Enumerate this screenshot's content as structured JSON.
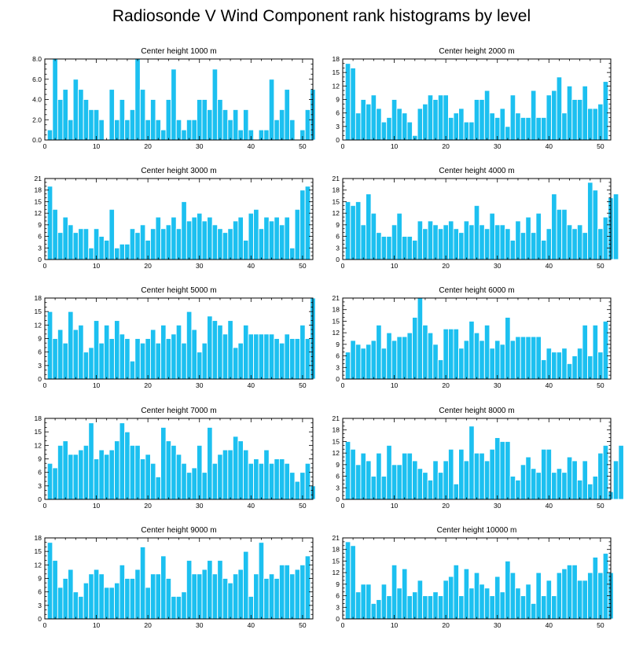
{
  "figure": {
    "title": "Radiosonde V Wind Component rank histograms by level"
  },
  "colors": {
    "bar": "#1cc0f0",
    "bar_edge": "#ffffff",
    "axis": "#000000"
  },
  "chart_data": [
    {
      "type": "bar",
      "title": "Center height 1000 m",
      "xlim": [
        0,
        52
      ],
      "ylim": [
        0,
        8
      ],
      "xticks": [
        0,
        10,
        20,
        30,
        40,
        50
      ],
      "yticks": [
        "0.0",
        "2.0",
        "4.0",
        "6.0",
        "8.0"
      ],
      "values": [
        1,
        8,
        4,
        5,
        2,
        6,
        5,
        4,
        3,
        3,
        2,
        0,
        5,
        2,
        4,
        2,
        3,
        8,
        5,
        2,
        4,
        2,
        1,
        4,
        7,
        2,
        1,
        2,
        2,
        4,
        4,
        3,
        7,
        4,
        3,
        2,
        3,
        1,
        3,
        1,
        0,
        1,
        1,
        6,
        2,
        3,
        5,
        2,
        0,
        1,
        3,
        5
      ]
    },
    {
      "type": "bar",
      "title": "Center height 2000 m",
      "xlim": [
        0,
        52
      ],
      "ylim": [
        0,
        18
      ],
      "xticks": [
        0,
        10,
        20,
        30,
        40,
        50
      ],
      "yticks": [
        "0",
        "3",
        "6",
        "9",
        "12",
        "15",
        "18"
      ],
      "values": [
        17,
        16,
        6,
        9,
        8,
        10,
        7,
        4,
        5,
        9,
        7,
        6,
        4,
        1,
        7,
        8,
        10,
        9,
        10,
        10,
        5,
        6,
        7,
        4,
        4,
        9,
        9,
        11,
        6,
        5,
        7,
        3,
        10,
        6,
        5,
        5,
        11,
        5,
        5,
        10,
        11,
        14,
        6,
        12,
        9,
        9,
        12,
        7,
        7,
        8,
        13
      ]
    },
    {
      "type": "bar",
      "title": "Center height 3000 m",
      "xlim": [
        0,
        52
      ],
      "ylim": [
        0,
        21
      ],
      "xticks": [
        0,
        10,
        20,
        30,
        40,
        50
      ],
      "yticks": [
        "0",
        "3",
        "6",
        "9",
        "12",
        "15",
        "18",
        "21"
      ],
      "values": [
        19,
        13,
        7,
        11,
        9,
        7,
        8,
        8,
        3,
        8,
        6,
        5,
        13,
        3,
        4,
        4,
        8,
        7,
        9,
        5,
        8,
        11,
        8,
        9,
        11,
        8,
        15,
        10,
        11,
        12,
        10,
        11,
        9,
        8,
        7,
        8,
        10,
        11,
        5,
        12,
        13,
        8,
        11,
        10,
        11,
        9,
        11,
        3,
        13,
        18,
        19
      ]
    },
    {
      "type": "bar",
      "title": "Center height 4000 m",
      "xlim": [
        0,
        52
      ],
      "ylim": [
        0,
        21
      ],
      "xticks": [
        0,
        10,
        20,
        30,
        40,
        50
      ],
      "yticks": [
        "0",
        "3",
        "6",
        "9",
        "12",
        "15",
        "18",
        "21"
      ],
      "values": [
        15,
        14,
        15,
        9,
        17,
        12,
        7,
        6,
        6,
        9,
        12,
        6,
        6,
        5,
        10,
        8,
        10,
        9,
        8,
        9,
        10,
        8,
        7,
        10,
        9,
        14,
        9,
        8,
        12,
        9,
        9,
        8,
        5,
        10,
        7,
        11,
        7,
        12,
        5,
        8,
        17,
        13,
        13,
        9,
        8,
        9,
        7,
        20,
        18,
        8,
        11,
        16,
        17
      ]
    },
    {
      "type": "bar",
      "title": "Center height 5000 m",
      "xlim": [
        0,
        52
      ],
      "ylim": [
        0,
        18
      ],
      "xticks": [
        0,
        10,
        20,
        30,
        40,
        50
      ],
      "yticks": [
        "0",
        "3",
        "6",
        "9",
        "12",
        "15",
        "18"
      ],
      "values": [
        15,
        9,
        11,
        8,
        15,
        11,
        12,
        6,
        7,
        13,
        8,
        12,
        9,
        13,
        10,
        9,
        4,
        9,
        8,
        9,
        11,
        8,
        12,
        9,
        10,
        12,
        8,
        15,
        11,
        6,
        8,
        14,
        13,
        12,
        10,
        13,
        7,
        8,
        12,
        10,
        10,
        10,
        10,
        10,
        9,
        8,
        10,
        9,
        9,
        12,
        9,
        18
      ]
    },
    {
      "type": "bar",
      "title": "Center height 6000 m",
      "xlim": [
        0,
        52
      ],
      "ylim": [
        0,
        21
      ],
      "xticks": [
        0,
        10,
        20,
        30,
        40,
        50
      ],
      "yticks": [
        "0",
        "3",
        "6",
        "9",
        "12",
        "15",
        "18",
        "21"
      ],
      "values": [
        7,
        10,
        9,
        8,
        9,
        10,
        14,
        8,
        12,
        10,
        11,
        11,
        12,
        16,
        21,
        14,
        12,
        9,
        5,
        13,
        13,
        13,
        8,
        10,
        15,
        12,
        10,
        14,
        8,
        10,
        9,
        16,
        10,
        11,
        11,
        11,
        11,
        11,
        5,
        8,
        7,
        7,
        8,
        4,
        6,
        8,
        14,
        6,
        14,
        7,
        15
      ]
    },
    {
      "type": "bar",
      "title": "Center height 7000 m",
      "xlim": [
        0,
        52
      ],
      "ylim": [
        0,
        18
      ],
      "xticks": [
        0,
        10,
        20,
        30,
        40,
        50
      ],
      "yticks": [
        "0",
        "3",
        "6",
        "9",
        "12",
        "15",
        "18"
      ],
      "values": [
        8,
        7,
        12,
        13,
        10,
        10,
        11,
        12,
        17,
        9,
        11,
        10,
        11,
        13,
        17,
        15,
        12,
        12,
        9,
        10,
        8,
        5,
        16,
        13,
        12,
        10,
        8,
        6,
        7,
        12,
        6,
        16,
        8,
        10,
        11,
        11,
        14,
        13,
        11,
        8,
        9,
        8,
        11,
        8,
        9,
        9,
        8,
        6,
        4,
        6,
        8,
        3
      ]
    },
    {
      "type": "bar",
      "title": "Center height 8000 m",
      "xlim": [
        0,
        52
      ],
      "ylim": [
        0,
        21
      ],
      "xticks": [
        0,
        10,
        20,
        30,
        40,
        50
      ],
      "yticks": [
        "0",
        "3",
        "6",
        "9",
        "12",
        "15",
        "18",
        "21"
      ],
      "values": [
        15,
        13,
        9,
        12,
        10,
        6,
        12,
        6,
        14,
        9,
        9,
        12,
        12,
        10,
        8,
        7,
        5,
        10,
        7,
        10,
        13,
        4,
        13,
        10,
        19,
        12,
        12,
        10,
        13,
        16,
        15,
        15,
        6,
        5,
        9,
        11,
        8,
        7,
        13,
        13,
        7,
        8,
        7,
        11,
        10,
        5,
        10,
        4,
        6,
        12,
        14,
        2,
        10,
        14
      ]
    },
    {
      "type": "bar",
      "title": "Center height 9000 m",
      "xlim": [
        0,
        52
      ],
      "ylim": [
        0,
        18
      ],
      "xticks": [
        0,
        10,
        20,
        30,
        40,
        50
      ],
      "yticks": [
        "0",
        "3",
        "6",
        "9",
        "12",
        "15",
        "18"
      ],
      "values": [
        17,
        13,
        7,
        9,
        11,
        6,
        5,
        8,
        10,
        11,
        10,
        7,
        7,
        8,
        12,
        9,
        9,
        11,
        16,
        7,
        10,
        10,
        14,
        9,
        5,
        5,
        6,
        13,
        10,
        10,
        11,
        13,
        10,
        13,
        9,
        8,
        10,
        11,
        15,
        5,
        10,
        17,
        9,
        10,
        9,
        12,
        12,
        10,
        11,
        12,
        14
      ]
    },
    {
      "type": "bar",
      "title": "Center height 10000 m",
      "xlim": [
        0,
        52
      ],
      "ylim": [
        0,
        21
      ],
      "xticks": [
        0,
        10,
        20,
        30,
        40,
        50
      ],
      "yticks": [
        "0",
        "3",
        "6",
        "9",
        "12",
        "15",
        "18",
        "21"
      ],
      "values": [
        20,
        19,
        7,
        9,
        9,
        4,
        5,
        9,
        6,
        14,
        8,
        13,
        6,
        7,
        10,
        6,
        6,
        7,
        6,
        10,
        11,
        14,
        6,
        13,
        8,
        12,
        9,
        8,
        6,
        11,
        7,
        15,
        12,
        8,
        6,
        9,
        4,
        12,
        6,
        10,
        6,
        12,
        13,
        14,
        14,
        10,
        10,
        12,
        16,
        12,
        17,
        12
      ]
    }
  ]
}
